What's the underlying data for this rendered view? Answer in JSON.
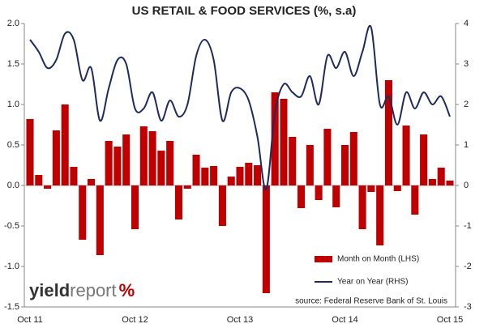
{
  "chart_data": {
    "type": "bar",
    "title": "US RETAIL & FOOD SERVICES (%, s.a)",
    "categories": [
      "Oct 11",
      null,
      null,
      null,
      null,
      null,
      null,
      null,
      null,
      null,
      null,
      null,
      "Oct 12",
      null,
      null,
      null,
      null,
      null,
      null,
      null,
      null,
      null,
      null,
      null,
      "Oct 13",
      null,
      null,
      null,
      null,
      null,
      null,
      null,
      null,
      null,
      null,
      null,
      "Oct 14",
      null,
      null,
      null,
      null,
      null,
      null,
      null,
      null,
      null,
      null,
      null,
      "Oct 15"
    ],
    "series": [
      {
        "name": "Month on Month (LHS)",
        "type": "bar",
        "color": "#c00000",
        "values": [
          0.82,
          0.13,
          -0.04,
          0.68,
          1.0,
          0.23,
          -0.67,
          0.08,
          -0.86,
          0.55,
          0.48,
          0.63,
          -0.54,
          0.73,
          0.67,
          0.43,
          0.55,
          -0.42,
          -0.04,
          0.38,
          0.22,
          0.24,
          -0.5,
          0.11,
          0.23,
          0.28,
          0.25,
          -1.33,
          1.15,
          1.07,
          0.6,
          -0.28,
          0.5,
          -0.18,
          0.7,
          -0.27,
          0.5,
          0.66,
          -0.54,
          -0.08,
          -0.74,
          1.3,
          -0.07,
          0.74,
          -0.36,
          0.63,
          0.08,
          0.22,
          0.06
        ]
      },
      {
        "name": "Year on Year (RHS)",
        "type": "line",
        "axis": "y2",
        "color": "#1f2a5e",
        "values": [
          3.6,
          3.3,
          2.9,
          3.1,
          3.75,
          3.6,
          2.6,
          2.9,
          1.6,
          2.4,
          3.1,
          3.0,
          1.9,
          1.9,
          2.3,
          1.6,
          2.1,
          1.7,
          2.0,
          3.2,
          3.6,
          3.1,
          1.6,
          2.3,
          2.4,
          2.1,
          1.2,
          -0.1,
          1.8,
          2.5,
          2.3,
          2.2,
          2.7,
          2.0,
          3.2,
          2.9,
          3.3,
          2.7,
          3.3,
          3.9,
          2.0,
          2.2,
          1.5,
          2.3,
          1.9,
          2.3,
          2.0,
          2.2,
          1.7
        ]
      }
    ],
    "ylim": [
      -1.5,
      2.0
    ],
    "yticks": [
      -1.5,
      {
        "value": -1,
        "label": "-1.0"
      },
      -0.5,
      {
        "value": 0,
        "label": "0.0"
      },
      0.5,
      {
        "value": 1,
        "label": "1.0"
      },
      1.5,
      {
        "value": 2,
        "label": "2.0"
      }
    ],
    "y2lim": [
      -3,
      4
    ],
    "y2ticks": [
      -3,
      -2,
      -1,
      0,
      1,
      2,
      3,
      4
    ],
    "grid": false,
    "legend": "lower right",
    "source": "source: Federal Reserve Bank of St. Louis",
    "logo": {
      "bold": "yield",
      "light": "report",
      "symbol": "%"
    }
  }
}
